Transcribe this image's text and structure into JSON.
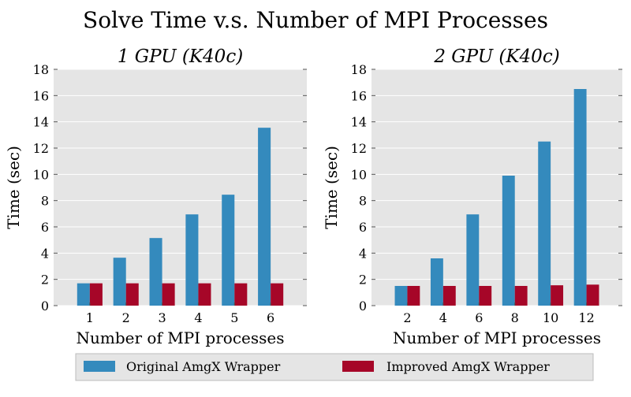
{
  "figure": {
    "title": "Solve Time v.s. Number of MPI Processes"
  },
  "legend": {
    "placement": "bottom-center",
    "entries": [
      {
        "label": "Original AmgX Wrapper",
        "color": "#348ABD"
      },
      {
        "label": "Improved AmgX Wrapper",
        "color": "#A60628"
      }
    ]
  },
  "style": {
    "plot_background": "#E5E5E5",
    "grid_color": "#FFFFFF",
    "grid": true
  },
  "chart_data": [
    {
      "type": "bar",
      "title": "1 GPU (K40c)",
      "xlabel": "Number of MPI processes",
      "ylabel": "Time (sec)",
      "ylim": [
        0,
        18
      ],
      "yticks": [
        "0",
        "2",
        "4",
        "6",
        "8",
        "10",
        "12",
        "14",
        "16",
        "18"
      ],
      "categories": [
        "1",
        "2",
        "3",
        "4",
        "5",
        "6"
      ],
      "series": [
        {
          "name": "Original AmgX Wrapper",
          "values": [
            1.7,
            3.65,
            5.15,
            6.95,
            8.45,
            13.55
          ]
        },
        {
          "name": "Improved AmgX Wrapper",
          "values": [
            1.7,
            1.7,
            1.7,
            1.7,
            1.7,
            1.7
          ]
        }
      ]
    },
    {
      "type": "bar",
      "title": "2 GPU (K40c)",
      "xlabel": "Number of MPI processes",
      "ylabel": "Time (sec)",
      "ylim": [
        0,
        18
      ],
      "yticks": [
        "0",
        "2",
        "4",
        "6",
        "8",
        "10",
        "12",
        "14",
        "16",
        "18"
      ],
      "categories": [
        "2",
        "4",
        "6",
        "8",
        "10",
        "12"
      ],
      "series": [
        {
          "name": "Original AmgX Wrapper",
          "values": [
            1.5,
            3.6,
            6.95,
            9.9,
            12.5,
            16.5
          ]
        },
        {
          "name": "Improved AmgX Wrapper",
          "values": [
            1.5,
            1.5,
            1.5,
            1.5,
            1.55,
            1.6
          ]
        }
      ]
    }
  ]
}
